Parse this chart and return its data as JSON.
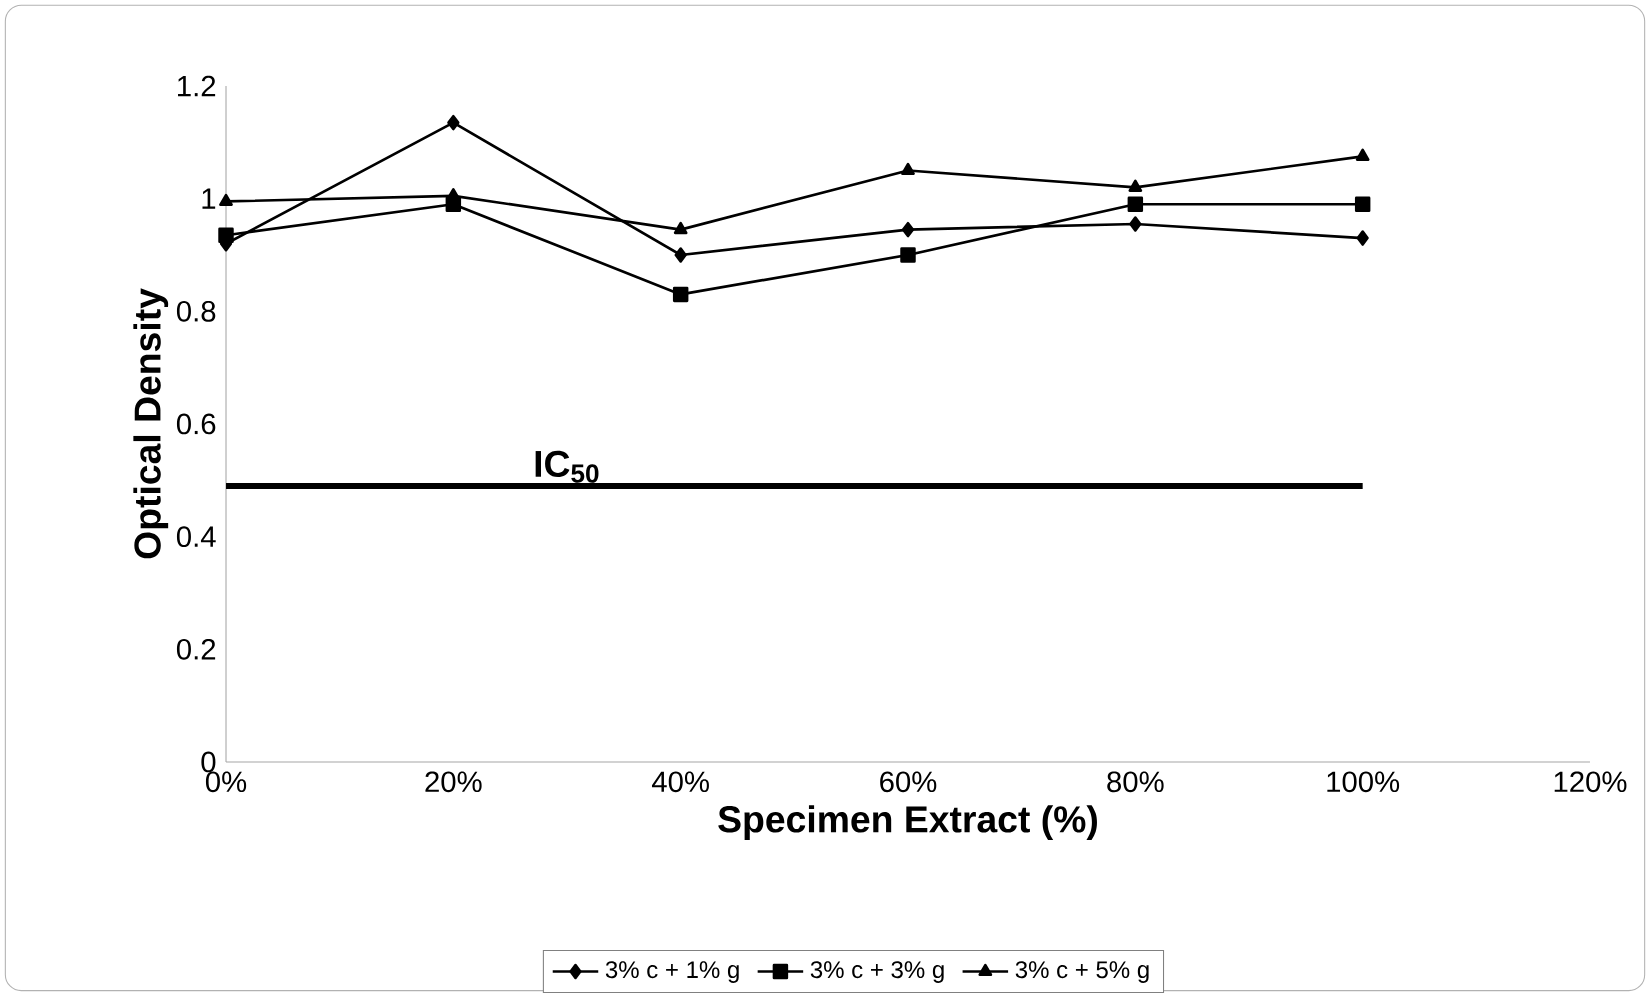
{
  "chart_data": {
    "type": "line",
    "xlabel": "Specimen Extract (%)",
    "ylabel": "Optical Density",
    "x": [
      0,
      20,
      40,
      60,
      80,
      100
    ],
    "series": [
      {
        "name": "3% c + 1% g",
        "color": "#000000",
        "marker": "diamond",
        "values": [
          0.92,
          1.135,
          0.9,
          0.945,
          0.955,
          0.93
        ]
      },
      {
        "name": "3% c + 3% g",
        "color": "#000000",
        "marker": "square",
        "values": [
          0.935,
          0.99,
          0.83,
          0.9,
          0.99,
          0.99
        ]
      },
      {
        "name": "3% c + 5% g",
        "color": "#000000",
        "marker": "triangle",
        "values": [
          0.995,
          1.005,
          0.945,
          1.05,
          1.02,
          1.075
        ]
      },
      {
        "color": "#000000",
        "marker": "none",
        "x": [
          0,
          100
        ],
        "values": [
          0.49,
          0.49
        ]
      }
    ],
    "annotations": [
      {
        "text": "IC$_{50}$",
        "x": 30,
        "y": 0.49
      }
    ],
    "xlim": [
      0,
      120
    ],
    "ylim": [
      0,
      1.2
    ],
    "xticks": [
      {
        "value": 0,
        "label": "0%"
      },
      {
        "value": 20,
        "label": "20%"
      },
      {
        "value": 40,
        "label": "40%"
      },
      {
        "value": 60,
        "label": "60%"
      },
      {
        "value": 80,
        "label": "80%"
      },
      {
        "value": 100,
        "label": "100%"
      },
      {
        "value": 120,
        "label": "120%"
      }
    ],
    "yticks": [
      0,
      0.2,
      0.4,
      0.6,
      0.8,
      1,
      1.2
    ],
    "grid": false,
    "legend": "bottom",
    "line_style": "solid"
  }
}
